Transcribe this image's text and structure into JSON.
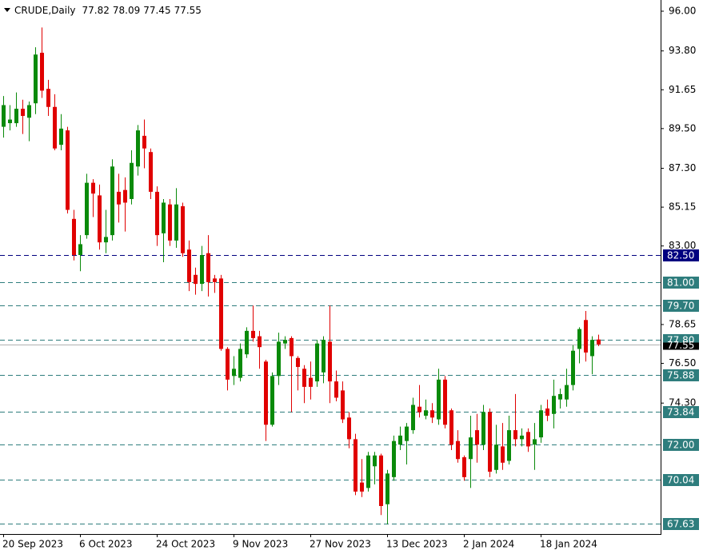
{
  "chart_data": {
    "type": "candlestick",
    "title": "CRUDE,Daily",
    "categories": [
      "20 Sep 2023",
      null,
      null,
      null,
      null,
      null,
      null,
      null,
      null,
      null,
      null,
      null,
      "6 Oct 2023",
      null,
      null,
      null,
      null,
      null,
      null,
      null,
      null,
      null,
      null,
      null,
      "24 Oct 2023",
      null,
      null,
      null,
      null,
      null,
      null,
      null,
      null,
      null,
      null,
      null,
      "9 Nov 2023",
      null,
      null,
      null,
      null,
      null,
      null,
      null,
      null,
      null,
      null,
      null,
      "27 Nov 2023",
      null,
      null,
      null,
      null,
      null,
      null,
      null,
      null,
      null,
      null,
      null,
      "13 Dec 2023",
      null,
      null,
      null,
      null,
      null,
      null,
      null,
      null,
      null,
      null,
      null,
      "2 Jan 2024",
      null,
      null,
      null,
      null,
      null,
      null,
      null,
      null,
      null,
      null,
      null,
      "18 Jan 2024",
      null,
      null,
      null,
      null,
      null,
      null,
      null,
      null,
      null
    ],
    "open": [
      89.6,
      89.8,
      89.8,
      90.6,
      90.1,
      90.9,
      93.7,
      91.7,
      90.7,
      88.6,
      89.4,
      84.5,
      82.5,
      83.6,
      86.5,
      85.8,
      83.2,
      83.6,
      86.0,
      86.1,
      85.6,
      87.4,
      89.1,
      88.2,
      86.0,
      83.7,
      85.3,
      83.3,
      85.2,
      82.8,
      81.4,
      80.9,
      82.6,
      81.2,
      81.2,
      77.3,
      75.8,
      75.7,
      77.0,
      78.3,
      78.0,
      76.6,
      73.1,
      75.8,
      77.6,
      77.9,
      76.8,
      76.2,
      75.7,
      75.5,
      76.0,
      77.7,
      75.5,
      75.0,
      73.5,
      72.3,
      69.9,
      69.6,
      70.8,
      71.4,
      68.7,
      70.2,
      72.0,
      72.2,
      72.8,
      74.1,
      73.6,
      73.9,
      73.4,
      75.6,
      73.9,
      72.2,
      71.3,
      71.2,
      72.8,
      72.0,
      73.8,
      70.6,
      71.9,
      71.1,
      72.8,
      72.3,
      72.7,
      72.0,
      72.4,
      74.0,
      73.7,
      74.5,
      74.5,
      75.3,
      77.3,
      78.9,
      76.9,
      77.82
    ],
    "high": [
      91.3,
      90.8,
      91.5,
      91.1,
      91.0,
      94.0,
      95.1,
      92.2,
      91.4,
      90.3,
      89.6,
      85.0,
      83.6,
      87.0,
      86.7,
      86.4,
      85.0,
      87.8,
      87.0,
      86.8,
      88.3,
      89.7,
      90.0,
      88.4,
      86.3,
      85.6,
      85.6,
      86.2,
      85.4,
      83.3,
      81.8,
      83.0,
      83.6,
      81.4,
      81.4,
      77.4,
      76.9,
      77.6,
      78.5,
      79.7,
      78.3,
      76.7,
      76.0,
      78.2,
      78.0,
      78.0,
      76.9,
      76.4,
      76.6,
      77.8,
      78.0,
      79.7,
      76.1,
      75.5,
      73.8,
      72.6,
      71.2,
      71.6,
      71.6,
      71.5,
      70.6,
      72.5,
      73.0,
      73.2,
      74.6,
      75.3,
      74.5,
      74.3,
      76.2,
      75.8,
      74.0,
      72.8,
      71.4,
      73.6,
      73.7,
      74.2,
      74.0,
      73.1,
      73.2,
      73.6,
      74.8,
      72.9,
      72.9,
      73.2,
      74.2,
      74.5,
      75.6,
      75.1,
      76.2,
      77.5,
      78.5,
      79.4,
      78.0,
      78.09
    ],
    "low": [
      89.0,
      89.4,
      89.6,
      89.2,
      88.8,
      90.3,
      91.2,
      90.2,
      88.3,
      88.3,
      84.8,
      82.2,
      81.6,
      83.4,
      84.6,
      82.8,
      82.6,
      83.3,
      84.3,
      83.8,
      85.3,
      86.9,
      87.3,
      85.6,
      83.0,
      82.1,
      83.0,
      82.9,
      82.4,
      80.5,
      80.3,
      80.5,
      80.2,
      80.4,
      77.2,
      75.0,
      75.3,
      75.5,
      76.8,
      77.7,
      76.2,
      72.2,
      73.0,
      75.3,
      77.3,
      73.8,
      75.0,
      74.3,
      74.5,
      75.2,
      75.4,
      74.3,
      74.4,
      73.2,
      71.8,
      69.2,
      69.1,
      69.4,
      69.8,
      68.1,
      67.6,
      70.0,
      71.7,
      70.9,
      72.6,
      73.5,
      73.4,
      73.2,
      73.1,
      72.9,
      71.7,
      71.0,
      70.0,
      69.6,
      71.0,
      71.7,
      70.2,
      70.4,
      70.6,
      70.9,
      71.9,
      71.9,
      71.6,
      70.6,
      72.1,
      73.3,
      72.9,
      74.0,
      74.1,
      75.0,
      76.5,
      76.6,
      75.9,
      77.45
    ],
    "close": [
      90.8,
      90.0,
      90.6,
      90.2,
      90.8,
      93.6,
      91.6,
      90.7,
      88.4,
      89.5,
      85.0,
      82.5,
      83.1,
      86.5,
      85.9,
      83.2,
      83.5,
      87.4,
      85.3,
      85.4,
      87.6,
      89.4,
      88.4,
      86.0,
      83.6,
      85.4,
      83.3,
      85.3,
      82.6,
      81.0,
      80.9,
      82.5,
      81.0,
      81.0,
      77.3,
      75.6,
      76.2,
      77.3,
      78.3,
      77.9,
      77.4,
      73.1,
      75.8,
      77.7,
      77.8,
      76.9,
      76.3,
      75.2,
      75.2,
      77.6,
      77.8,
      75.5,
      74.6,
      73.4,
      72.3,
      69.4,
      69.4,
      71.4,
      71.4,
      68.6,
      70.4,
      72.2,
      72.5,
      73.0,
      74.2,
      73.8,
      73.9,
      73.5,
      75.6,
      73.1,
      72.0,
      71.2,
      70.2,
      72.4,
      72.0,
      73.8,
      70.5,
      72.0,
      71.0,
      72.8,
      72.3,
      72.5,
      71.9,
      72.3,
      73.9,
      73.6,
      74.7,
      74.8,
      75.3,
      77.2,
      78.4,
      77.1,
      77.8,
      77.55
    ],
    "up_color": "#0a8a0a",
    "down_color": "#e00000",
    "ylim": [
      67.05,
      96.62
    ],
    "yticks": [
      {
        "value": 96,
        "label": "96.00"
      },
      {
        "value": 93.8,
        "label": "93.80"
      },
      {
        "value": 91.65,
        "label": "91.65"
      },
      {
        "value": 89.5,
        "label": "89.50"
      },
      {
        "value": 87.3,
        "label": "87.30"
      },
      {
        "value": 85.15,
        "label": "85.15"
      },
      {
        "value": 83,
        "label": "83.00"
      },
      {
        "value": 78.65,
        "label": "78.65"
      },
      {
        "value": 76.5,
        "label": "76.50"
      },
      {
        "value": 74.3,
        "label": "74.30"
      }
    ],
    "levels": [
      {
        "value": 82.5,
        "label": "82.50",
        "color": "#000080"
      },
      {
        "value": 81,
        "label": "81.00",
        "color": "#2e7d7d"
      },
      {
        "value": 79.7,
        "label": "79.70",
        "color": "#2e7d7d"
      },
      {
        "value": 77.8,
        "label": "77.80",
        "color": "#2e7d7d"
      },
      {
        "value": 75.88,
        "label": "75.88",
        "color": "#2e7d7d"
      },
      {
        "value": 73.84,
        "label": "73.84",
        "color": "#2e7d7d"
      },
      {
        "value": 72,
        "label": "72.00",
        "color": "#2e7d7d"
      },
      {
        "value": 70.04,
        "label": "70.04",
        "color": "#2e7d7d"
      },
      {
        "value": 67.63,
        "label": "67.63",
        "color": "#2e7d7d"
      }
    ],
    "price_line": {
      "value": 77.55,
      "label": "77.55",
      "color": "#000000"
    }
  }
}
